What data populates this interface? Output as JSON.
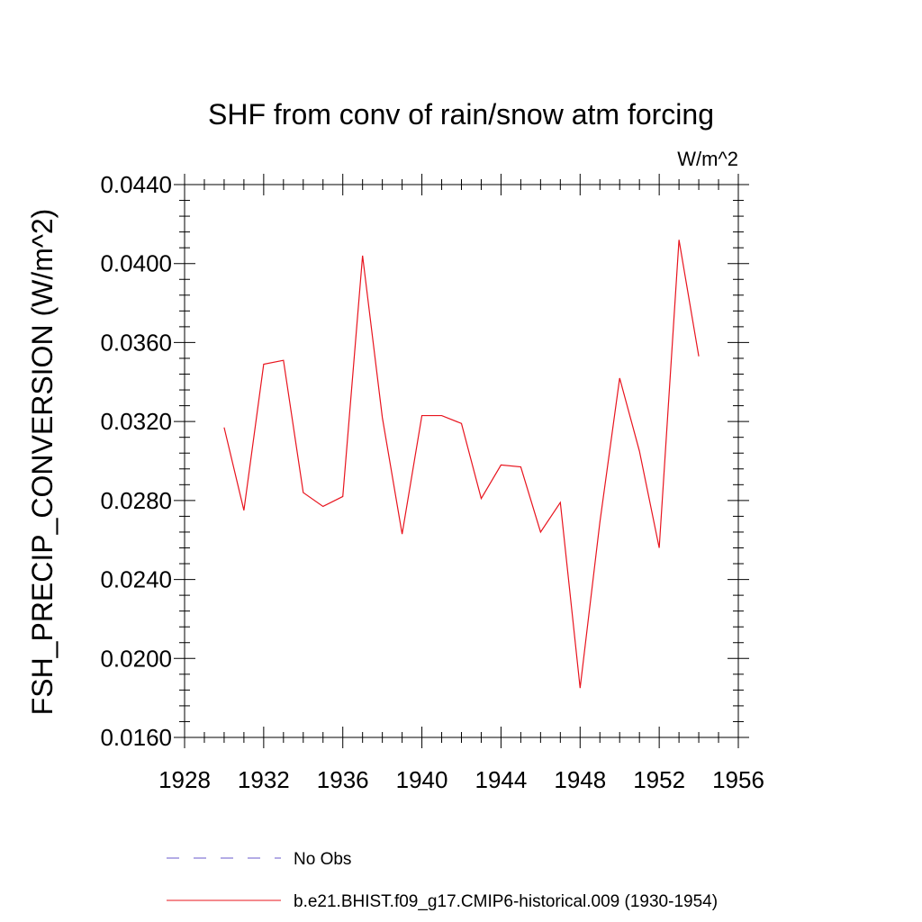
{
  "chart_data": {
    "type": "line",
    "title": "SHF from conv of rain/snow atm forcing",
    "units": "W/m^2",
    "xlabel": "",
    "ylabel": "FSH_PRECIP_CONVERSION  (W/m^2)",
    "xlim": [
      1928,
      1956
    ],
    "ylim": [
      0.016,
      0.044
    ],
    "x_ticks": [
      "1928",
      "1932",
      "1936",
      "1940",
      "1944",
      "1948",
      "1952",
      "1956"
    ],
    "y_ticks": [
      "0.0160",
      "0.0200",
      "0.0240",
      "0.0280",
      "0.0320",
      "0.0360",
      "0.0400",
      "0.0440"
    ],
    "grid": false,
    "legend_position": "bottom",
    "series": [
      {
        "name": "No Obs",
        "color": "#6a5acd",
        "style": "dashed",
        "x": [],
        "values": []
      },
      {
        "name": "b.e21.BHIST.f09_g17.CMIP6-historical.009 (1930-1954)",
        "color": "#e8141e",
        "style": "solid",
        "x": [
          1930,
          1931,
          1932,
          1933,
          1934,
          1935,
          1936,
          1937,
          1938,
          1939,
          1940,
          1941,
          1942,
          1943,
          1944,
          1945,
          1946,
          1947,
          1948,
          1949,
          1950,
          1951,
          1952,
          1953,
          1954
        ],
        "values": [
          0.0317,
          0.0275,
          0.0349,
          0.0351,
          0.0284,
          0.0277,
          0.0282,
          0.0404,
          0.0322,
          0.0263,
          0.0323,
          0.0323,
          0.0319,
          0.0281,
          0.0298,
          0.0297,
          0.0264,
          0.0279,
          0.0185,
          0.0269,
          0.0342,
          0.0305,
          0.0256,
          0.0412,
          0.0353
        ]
      }
    ]
  }
}
